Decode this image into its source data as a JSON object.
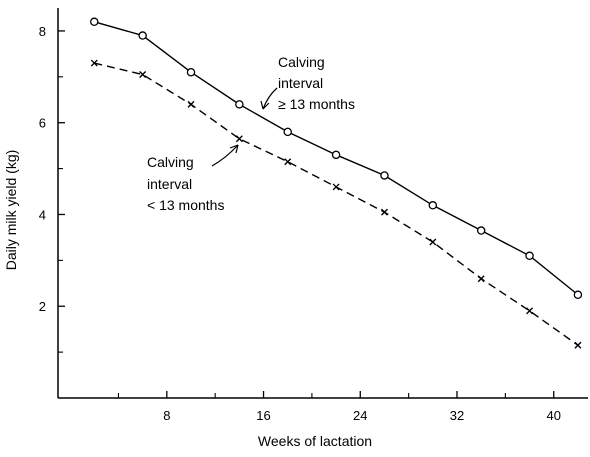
{
  "chart_data": {
    "type": "line",
    "xlabel": "Weeks of lactation",
    "ylabel": "Daily milk yield (kg)",
    "xlim": [
      -1,
      43
    ],
    "ylim": [
      0,
      8.5
    ],
    "x_ticks": [
      8,
      16,
      24,
      32,
      40
    ],
    "x_minor_ticks": [
      4,
      12,
      20,
      28,
      36
    ],
    "y_ticks": [
      2,
      4,
      6,
      8
    ],
    "y_minor_ticks": [
      1,
      3,
      5,
      7
    ],
    "grid": false,
    "legend": "none",
    "series": [
      {
        "label_lines": [
          "Calving",
          "interval",
          "≥ 13 months"
        ],
        "marker": "circle",
        "line_style": "solid",
        "x": [
          2,
          6,
          10,
          14,
          18,
          22,
          26,
          30,
          34,
          38,
          42
        ],
        "y": [
          8.2,
          7.9,
          7.1,
          6.4,
          5.8,
          5.3,
          4.85,
          4.2,
          3.65,
          3.1,
          2.25
        ]
      },
      {
        "label_lines": [
          "Calving",
          "interval",
          "< 13 months"
        ],
        "marker": "cross",
        "line_style": "dashed",
        "x": [
          2,
          6,
          10,
          14,
          18,
          22,
          26,
          30,
          34,
          38,
          42
        ],
        "y": [
          7.3,
          7.05,
          6.4,
          5.65,
          5.15,
          4.6,
          4.05,
          3.4,
          2.6,
          1.9,
          1.15
        ]
      }
    ]
  }
}
